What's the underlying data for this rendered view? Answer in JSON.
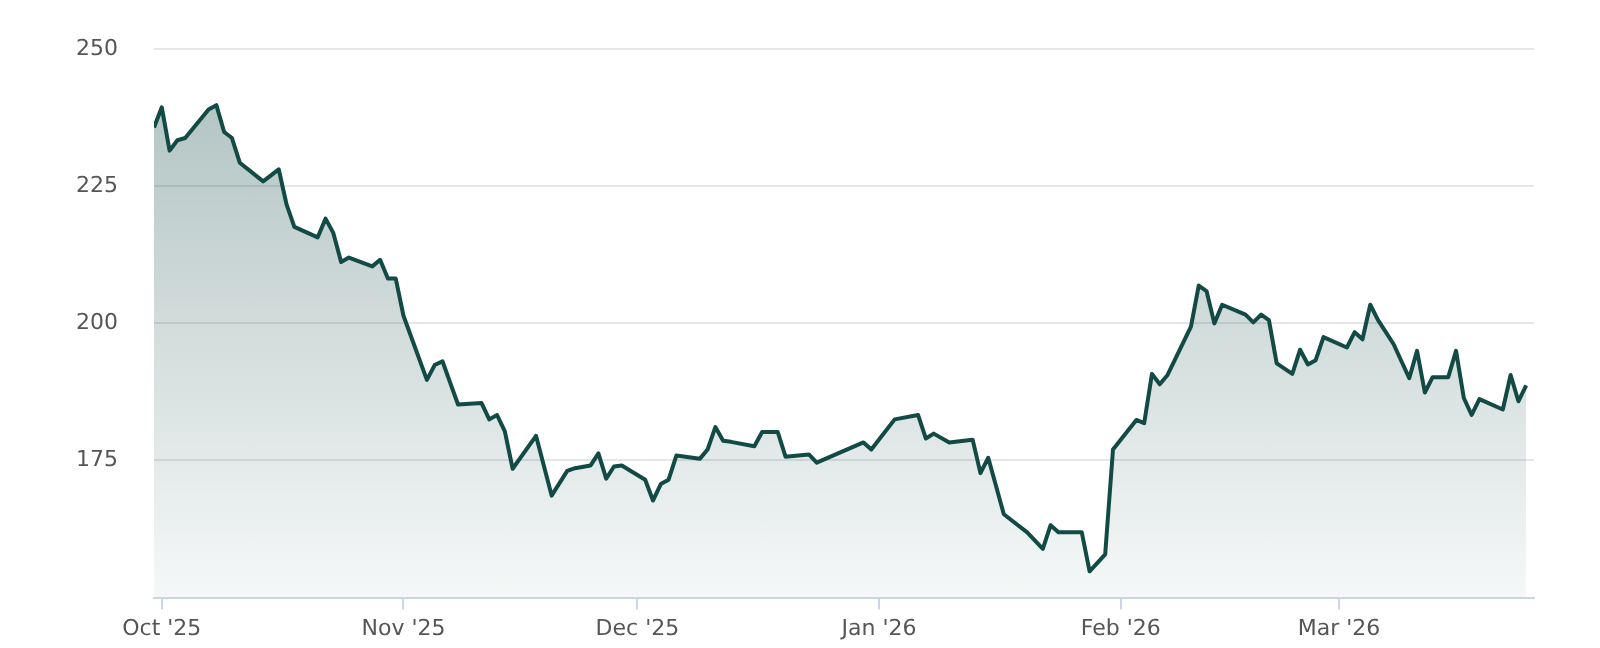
{
  "chart_data": {
    "type": "area",
    "legend": false,
    "grid": "y",
    "marker": "none",
    "xlim": [
      "2025-09-30",
      "2026-03-26"
    ],
    "xticks": [
      {
        "value": "2025-10-01",
        "label": "Oct '25"
      },
      {
        "value": "2025-11-01",
        "label": "Nov '25"
      },
      {
        "value": "2025-12-01",
        "label": "Dec '25"
      },
      {
        "value": "2026-01-01",
        "label": "Jan '26"
      },
      {
        "value": "2026-02-01",
        "label": "Feb '26"
      },
      {
        "value": "2026-03-01",
        "label": "Mar '26"
      }
    ],
    "ylim": [
      150,
      250
    ],
    "yticks": [
      175,
      200,
      225,
      250
    ],
    "series": [
      {
        "color": "#124a45",
        "x": [
          "2025-09-30",
          "2025-10-01",
          "2025-10-02",
          "2025-10-03",
          "2025-10-04",
          "2025-10-07",
          "2025-10-08",
          "2025-10-09",
          "2025-10-10",
          "2025-10-11",
          "2025-10-14",
          "2025-10-16",
          "2025-10-17",
          "2025-10-18",
          "2025-10-21",
          "2025-10-22",
          "2025-10-23",
          "2025-10-24",
          "2025-10-25",
          "2025-10-28",
          "2025-10-29",
          "2025-10-30",
          "2025-10-31",
          "2025-11-01",
          "2025-11-04",
          "2025-11-05",
          "2025-11-06",
          "2025-11-08",
          "2025-11-11",
          "2025-11-12",
          "2025-11-13",
          "2025-11-14",
          "2025-11-15",
          "2025-11-18",
          "2025-11-20",
          "2025-11-22",
          "2025-11-23",
          "2025-11-25",
          "2025-11-26",
          "2025-11-27",
          "2025-11-28",
          "2025-11-29",
          "2025-12-02",
          "2025-12-03",
          "2025-12-04",
          "2025-12-05",
          "2025-12-06",
          "2025-12-09",
          "2025-12-10",
          "2025-12-11",
          "2025-12-12",
          "2025-12-13",
          "2025-12-16",
          "2025-12-17",
          "2025-12-19",
          "2025-12-20",
          "2025-12-23",
          "2025-12-24",
          "2025-12-30",
          "2025-12-31",
          "2026-01-03",
          "2026-01-06",
          "2026-01-07",
          "2026-01-08",
          "2026-01-10",
          "2026-01-13",
          "2026-01-14",
          "2026-01-15",
          "2026-01-17",
          "2026-01-20",
          "2026-01-22",
          "2026-01-23",
          "2026-01-24",
          "2026-01-27",
          "2026-01-28",
          "2026-01-30",
          "2026-01-31",
          "2026-02-03",
          "2026-02-04",
          "2026-02-05",
          "2026-02-06",
          "2026-02-07",
          "2026-02-10",
          "2026-02-11",
          "2026-02-12",
          "2026-02-13",
          "2026-02-14",
          "2026-02-17",
          "2026-02-18",
          "2026-02-19",
          "2026-02-20",
          "2026-02-21",
          "2026-02-23",
          "2026-02-24",
          "2026-02-25",
          "2026-02-26",
          "2026-02-27",
          "2026-03-02",
          "2026-03-03",
          "2026-03-04",
          "2026-03-05",
          "2026-03-06",
          "2026-03-08",
          "2026-03-10",
          "2026-03-11",
          "2026-03-12",
          "2026-03-13",
          "2026-03-15",
          "2026-03-16",
          "2026-03-17",
          "2026-03-18",
          "2026-03-19",
          "2026-03-22",
          "2026-03-23",
          "2026-03-24",
          "2026-03-25"
        ],
        "values": [
          235.7,
          239.4,
          231.5,
          233.4,
          233.8,
          239,
          239.8,
          234.9,
          233.8,
          229.3,
          225.9,
          228.1,
          221.7,
          217.6,
          215.7,
          219.1,
          216.5,
          211.2,
          212,
          210.4,
          211.6,
          208.2,
          208.2,
          201.4,
          189.7,
          192.4,
          193.1,
          185.2,
          185.5,
          182.5,
          183.3,
          180.3,
          173.5,
          179.5,
          168.6,
          173.1,
          173.6,
          174.1,
          176.3,
          171.7,
          173.9,
          174.1,
          171.5,
          167.7,
          170.7,
          171.5,
          175.9,
          175.3,
          177,
          181.1,
          178.6,
          178.4,
          177.6,
          180.2,
          180.2,
          175.7,
          176.1,
          174.6,
          178.3,
          177,
          182.5,
          183.3,
          179,
          179.9,
          178.3,
          178.8,
          172.7,
          175.5,
          165.2,
          161.9,
          158.9,
          163.2,
          161.9,
          161.9,
          154.8,
          157.9,
          177,
          182.4,
          181.8,
          190.8,
          188.9,
          190.6,
          199.4,
          206.9,
          205.9,
          200,
          203.4,
          201.6,
          200.2,
          201.6,
          200.6,
          192.7,
          190.8,
          195.2,
          192.5,
          193.3,
          197.5,
          195.6,
          198.4,
          197.1,
          203.4,
          200.6,
          196.2,
          190,
          195,
          187.4,
          190.2,
          190.2,
          195,
          186.4,
          183.3,
          186.2,
          184.3,
          190.6,
          185.8,
          188.7
        ]
      }
    ]
  }
}
